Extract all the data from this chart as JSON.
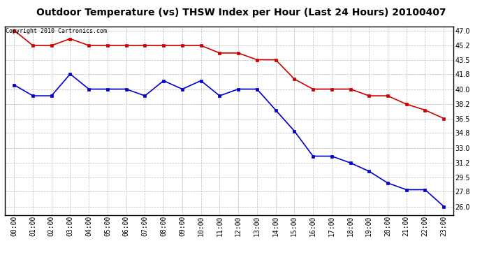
{
  "title": "Outdoor Temperature (vs) THSW Index per Hour (Last 24 Hours) 20100407",
  "copyright_text": "Copyright 2010 Cartronics.com",
  "hours": [
    "00:00",
    "01:00",
    "02:00",
    "03:00",
    "04:00",
    "05:00",
    "06:00",
    "07:00",
    "08:00",
    "09:00",
    "10:00",
    "11:00",
    "12:00",
    "13:00",
    "14:00",
    "15:00",
    "16:00",
    "17:00",
    "18:00",
    "19:00",
    "20:00",
    "21:00",
    "22:00",
    "23:00"
  ],
  "red_data": [
    47.0,
    45.2,
    45.2,
    46.0,
    45.2,
    45.2,
    45.2,
    45.2,
    45.2,
    45.2,
    45.2,
    44.3,
    44.3,
    43.5,
    43.5,
    41.2,
    40.0,
    40.0,
    40.0,
    39.2,
    39.2,
    38.2,
    37.5,
    36.5
  ],
  "blue_data": [
    40.5,
    39.2,
    39.2,
    41.8,
    40.0,
    40.0,
    40.0,
    39.2,
    41.0,
    40.0,
    41.0,
    39.2,
    40.0,
    40.0,
    37.5,
    35.0,
    32.0,
    32.0,
    31.2,
    30.2,
    28.8,
    28.0,
    28.0,
    26.0
  ],
  "ylim_min": 25.0,
  "ylim_max": 47.5,
  "yticks": [
    47.0,
    45.2,
    43.5,
    41.8,
    40.0,
    38.2,
    36.5,
    34.8,
    33.0,
    31.2,
    29.5,
    27.8,
    26.0
  ],
  "red_color": "#cc0000",
  "blue_color": "#0000cc",
  "bg_color": "#ffffff",
  "plot_bg_color": "#ffffff",
  "grid_color": "#bbbbbb",
  "title_fontsize": 10,
  "tick_fontsize": 7,
  "copyright_fontsize": 6
}
